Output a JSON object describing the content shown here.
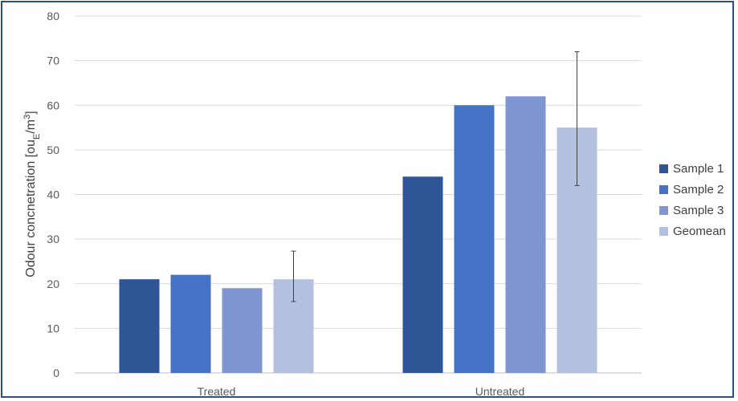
{
  "chart_data": {
    "type": "bar",
    "title": "",
    "ylabel": {
      "main": "Odour concnetration [ou",
      "sub": "E",
      "mid": "/m",
      "sup": "3",
      "end": "]"
    },
    "xlabel": "",
    "categories": [
      "Treated",
      "Untreated"
    ],
    "ylim": [
      0,
      80
    ],
    "yticks": [
      0,
      10,
      20,
      30,
      40,
      50,
      60,
      70,
      80
    ],
    "grid": true,
    "legend_position": "right",
    "series": [
      {
        "name": "Sample 1",
        "color": "#2f5597",
        "values": [
          21,
          44
        ]
      },
      {
        "name": "Sample 2",
        "color": "#4472c4",
        "values": [
          22,
          60
        ]
      },
      {
        "name": "Sample 3",
        "color": "#7f96d2",
        "values": [
          19,
          62
        ]
      },
      {
        "name": "Geomean",
        "color": "#b4c0e0",
        "values": [
          21,
          55
        ],
        "error_low": [
          16,
          42
        ],
        "error_high": [
          27.3,
          72
        ]
      }
    ]
  }
}
